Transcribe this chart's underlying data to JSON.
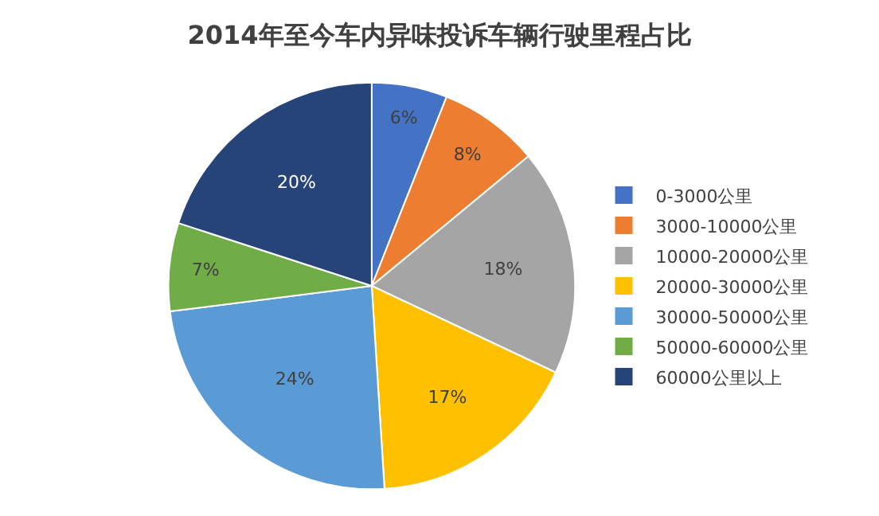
{
  "chart_data": {
    "type": "pie",
    "title": "2014年至今车内异味投诉车辆行驶里程占比",
    "categories": [
      "0-3000公里",
      "3000-10000公里",
      "10000-20000公里",
      "20000-30000公里",
      "30000-50000公里",
      "50000-60000公里",
      "60000公里以上"
    ],
    "values": [
      6,
      8,
      18,
      17,
      24,
      7,
      20
    ],
    "colors": [
      "#4472c4",
      "#ed7d31",
      "#a5a5a5",
      "#ffc000",
      "#5b9bd5",
      "#70ad47",
      "#264478"
    ],
    "value_labels": [
      "6%",
      "8%",
      "18%",
      "17%",
      "24%",
      "7%",
      "20%"
    ],
    "legend": "right"
  }
}
